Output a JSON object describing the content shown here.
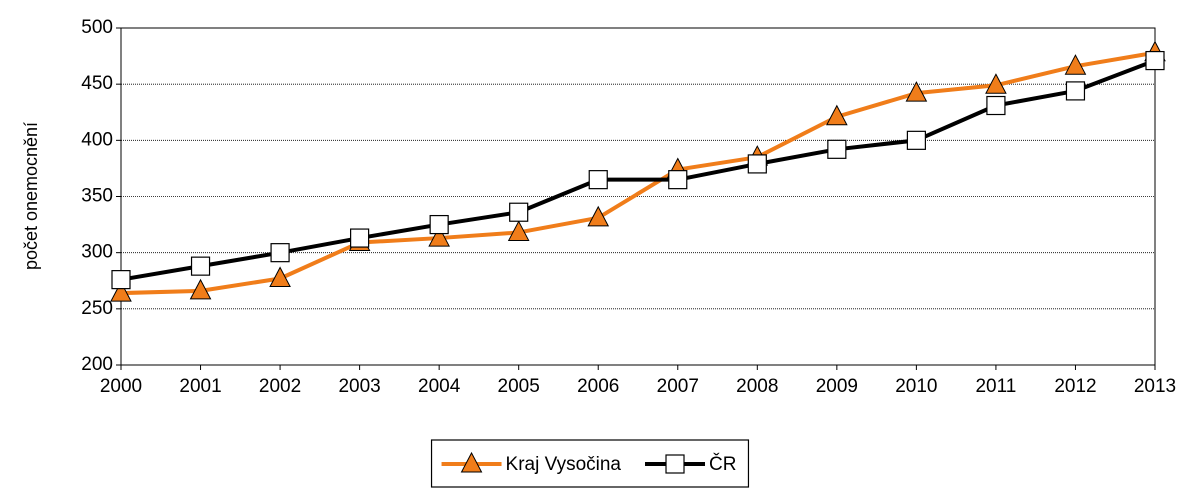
{
  "chart_data": {
    "type": "line",
    "y_label": "počet onemocnění",
    "categories": [
      "2000",
      "2001",
      "2002",
      "2003",
      "2004",
      "2005",
      "2006",
      "2007",
      "2008",
      "2009",
      "2010",
      "2011",
      "2012",
      "2013"
    ],
    "series": [
      {
        "name": "Kraj Vysočina",
        "color": "#f07d1a",
        "marker": "triangle",
        "values": [
          264,
          266,
          277,
          309,
          313,
          318,
          331,
          374,
          385,
          421,
          442,
          449,
          466,
          478
        ]
      },
      {
        "name": "ČR",
        "color": "#000000",
        "marker": "square",
        "values": [
          276,
          288,
          300,
          313,
          325,
          336,
          365,
          365,
          379,
          392,
          400,
          431,
          444,
          471
        ]
      }
    ],
    "ylim": [
      200,
      500
    ],
    "yticks": [
      200,
      250,
      300,
      350,
      400,
      450,
      500
    ],
    "grid": true,
    "legend": "bottom"
  }
}
